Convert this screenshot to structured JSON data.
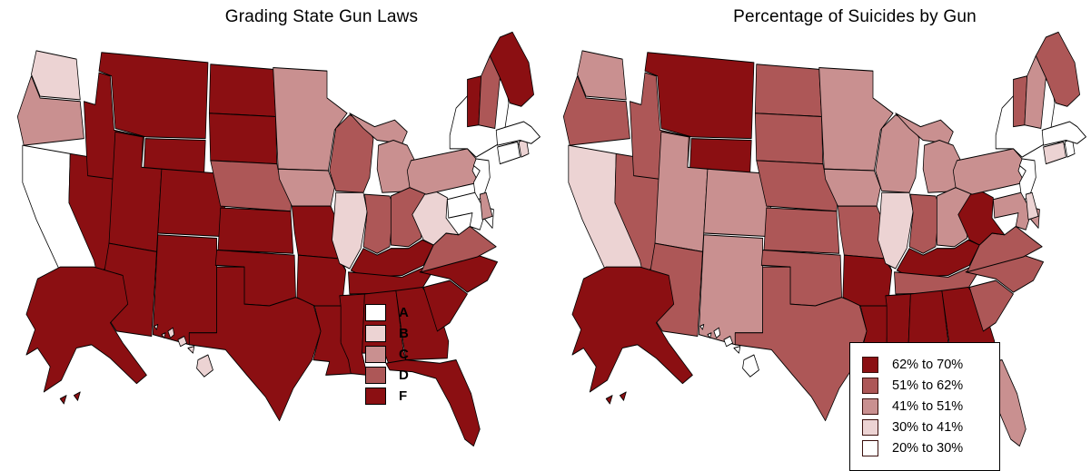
{
  "page": {
    "background": "#ffffff",
    "state_border_color": "#000000"
  },
  "maps": [
    {
      "title": "Grading State Gun Laws",
      "legend": {
        "boxed": false,
        "items": [
          {
            "key": "A",
            "label": "A",
            "color": "#ffffff"
          },
          {
            "key": "B",
            "label": "B",
            "color": "#ecd3d3"
          },
          {
            "key": "C",
            "label": "C",
            "color": "#c99090"
          },
          {
            "key": "D",
            "label": "D",
            "color": "#ad5757"
          },
          {
            "key": "F",
            "label": "F",
            "color": "#8b0f12"
          }
        ]
      },
      "palette": {
        "A": "#ffffff",
        "B": "#ecd3d3",
        "C": "#c99090",
        "D": "#ad5757",
        "F": "#8b0f12"
      },
      "state_categories": {
        "WA": "B",
        "OR": "C",
        "CA": "A",
        "NV": "F",
        "ID": "F",
        "MT": "F",
        "WY": "F",
        "UT": "F",
        "CO": "F",
        "AZ": "F",
        "NM": "F",
        "ND": "F",
        "SD": "F",
        "NE": "D",
        "KS": "F",
        "OK": "F",
        "TX": "F",
        "MN": "C",
        "IA": "C",
        "MO": "F",
        "AR": "F",
        "LA": "F",
        "WI": "D",
        "IL": "B",
        "MS": "F",
        "MI": "C",
        "IN": "D",
        "OH": "D",
        "KY": "F",
        "TN": "F",
        "AL": "F",
        "GA": "F",
        "FL": "F",
        "SC": "F",
        "NC": "F",
        "VA": "D",
        "WV": "B",
        "PA": "C",
        "NY": "A",
        "NJ": "A",
        "CT": "A",
        "RI": "B",
        "MA": "A",
        "VT": "F",
        "NH": "D",
        "ME": "F",
        "MD": "A",
        "DE": "C",
        "AK": "F",
        "HI": "B"
      }
    },
    {
      "title": "Percentage of Suicides by Gun",
      "legend": {
        "boxed": true,
        "items": [
          {
            "key": "62-70",
            "label": "62% to 70%",
            "color": "#8b0f12"
          },
          {
            "key": "51-62",
            "label": "51% to 62%",
            "color": "#ad5757"
          },
          {
            "key": "41-51",
            "label": "41% to 51%",
            "color": "#c99090"
          },
          {
            "key": "30-41",
            "label": "30% to 41%",
            "color": "#ecd3d3"
          },
          {
            "key": "20-30",
            "label": "20% to 30%",
            "color": "#ffffff"
          }
        ]
      },
      "palette": {
        "62-70": "#8b0f12",
        "51-62": "#ad5757",
        "41-51": "#c99090",
        "30-41": "#ecd3d3",
        "20-30": "#ffffff"
      },
      "state_categories": {
        "WA": "41-51",
        "OR": "51-62",
        "CA": "30-41",
        "NV": "51-62",
        "ID": "51-62",
        "MT": "62-70",
        "WY": "62-70",
        "UT": "41-51",
        "CO": "41-51",
        "AZ": "51-62",
        "NM": "41-51",
        "ND": "51-62",
        "SD": "51-62",
        "NE": "51-62",
        "KS": "51-62",
        "OK": "51-62",
        "TX": "51-62",
        "MN": "41-51",
        "IA": "41-51",
        "MO": "51-62",
        "AR": "62-70",
        "LA": "62-70",
        "WI": "41-51",
        "IL": "30-41",
        "MS": "62-70",
        "MI": "41-51",
        "IN": "51-62",
        "OH": "41-51",
        "KY": "62-70",
        "TN": "51-62",
        "AL": "62-70",
        "GA": "62-70",
        "FL": "41-51",
        "SC": "51-62",
        "NC": "51-62",
        "VA": "51-62",
        "WV": "62-70",
        "PA": "41-51",
        "NY": "20-30",
        "NJ": "20-30",
        "CT": "30-41",
        "RI": "20-30",
        "MA": "20-30",
        "VT": "51-62",
        "NH": "41-51",
        "ME": "51-62",
        "MD": "41-51",
        "DE": "30-41",
        "AK": "62-70",
        "HI": "20-30"
      }
    }
  ]
}
